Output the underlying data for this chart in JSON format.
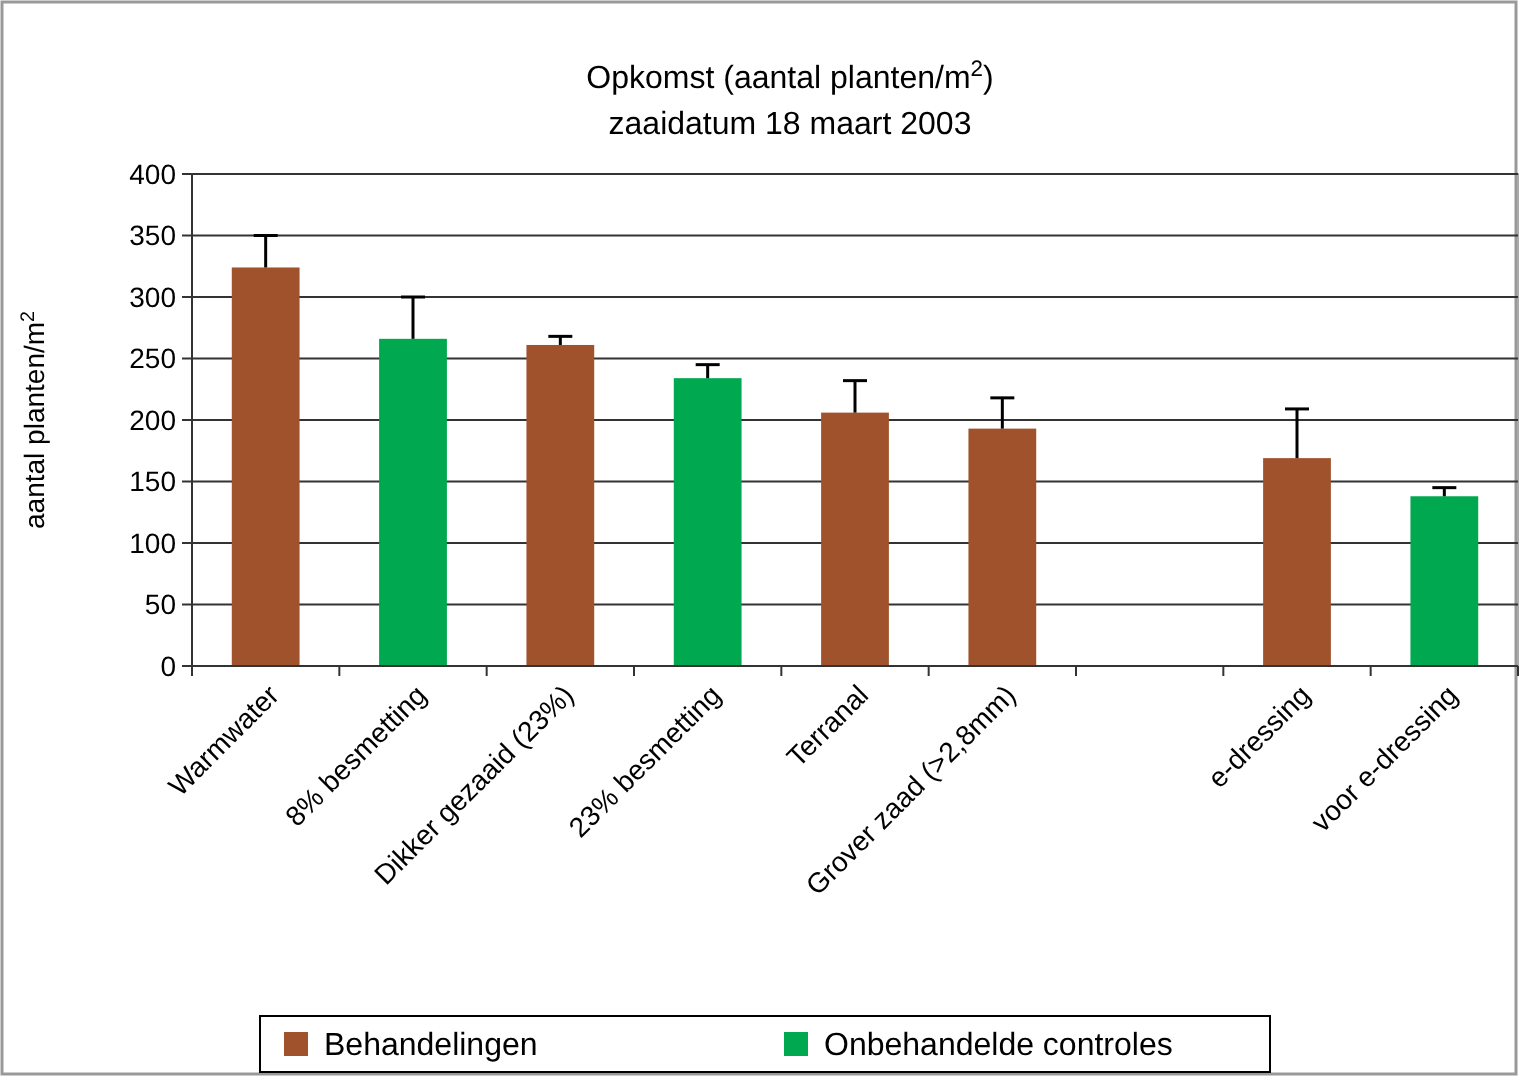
{
  "chart_data": {
    "type": "bar",
    "title": "Opkomst (aantal planten/m$^{2}$)",
    "subtitle": "zaaidatum 18 maart 2003",
    "ylabel": "aantal planten/m$^{2}$",
    "categories": [
      "Warmwater",
      "8% besmetting",
      "Dikker gezaaid (23%)",
      "23% besmetting",
      "Terranal",
      "Grover zaad (>2,8mm)",
      null,
      "e-dressing",
      "voor e-dressing"
    ],
    "series": [
      {
        "name": "Behandelingen",
        "color": "#a0522d",
        "values": [
          324,
          null,
          261,
          null,
          206,
          193,
          null,
          169,
          null
        ],
        "errors": [
          [
            324,
            350
          ],
          null,
          [
            261,
            268
          ],
          null,
          [
            206,
            232
          ],
          [
            193,
            218
          ],
          null,
          [
            169,
            209
          ],
          null
        ]
      },
      {
        "name": "Onbehandelde controles",
        "color": "#00a84f",
        "values": [
          null,
          266,
          null,
          234,
          null,
          null,
          null,
          null,
          138
        ],
        "errors": [
          null,
          [
            266,
            300
          ],
          null,
          [
            234,
            245
          ],
          null,
          null,
          null,
          null,
          [
            138,
            145
          ]
        ]
      }
    ],
    "ylim": [
      0,
      400
    ],
    "yticks": [
      0,
      50,
      100,
      150,
      200,
      250,
      300,
      350,
      400
    ],
    "grid": "y",
    "legend": "bottom"
  }
}
